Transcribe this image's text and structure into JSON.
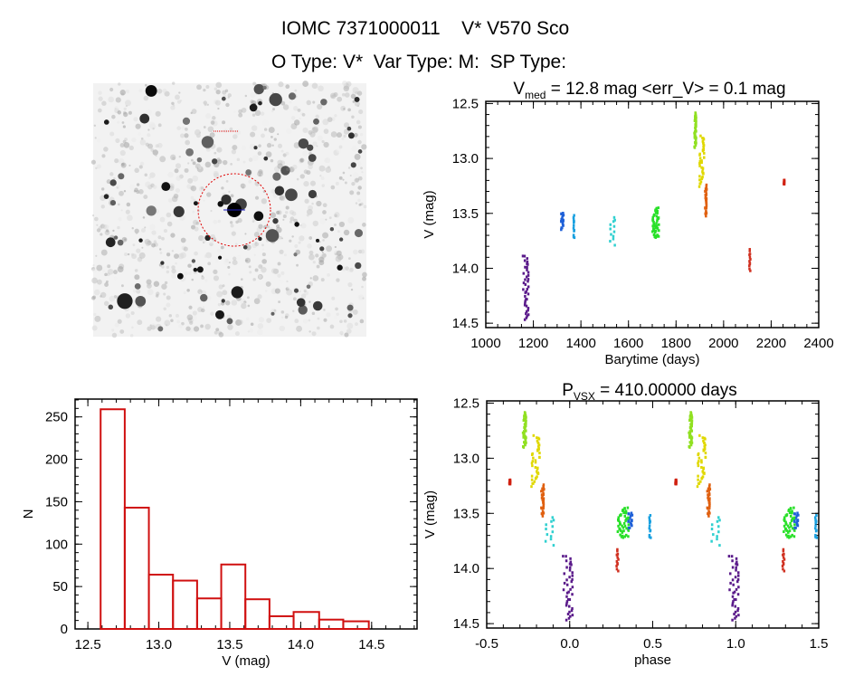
{
  "header": {
    "title": "IOMC 7371000011    V* V570 Sco",
    "subtitle": "O Type: V*  Var Type: M:  SP Type:"
  },
  "chart_data": [
    {
      "id": "histogram",
      "type": "bar",
      "title": "",
      "xlabel": "V (mag)",
      "ylabel": "N",
      "bin_edges": [
        12.59,
        12.76,
        12.93,
        13.1,
        13.27,
        13.44,
        13.61,
        13.78,
        13.95,
        14.13,
        14.3,
        14.48
      ],
      "values": [
        259,
        143,
        64,
        57,
        36,
        76,
        35,
        15,
        20,
        11,
        9
      ],
      "xlim": [
        12.41,
        14.82
      ],
      "ylim": [
        0,
        271
      ],
      "xticks": [
        "12.5",
        "13.0",
        "13.5",
        "14.0",
        "14.5"
      ],
      "yticks": [
        "0",
        "50",
        "100",
        "150",
        "200",
        "250"
      ],
      "color": "#d01010"
    },
    {
      "id": "lightcurve",
      "type": "scatter",
      "title_main": "V",
      "title_sub": "med",
      "title_rest": " = 12.8 mag <err_V> = 0.1 mag",
      "xlabel": "Barytime (days)",
      "ylabel": "V (mag)",
      "xlim": [
        1000,
        2400
      ],
      "ylim": [
        14.54,
        12.48
      ],
      "xticks": [
        "1000",
        "1200",
        "1400",
        "1600",
        "1800",
        "2000",
        "2200",
        "2400"
      ],
      "yticks": [
        "12.5",
        "13.0",
        "13.5",
        "14.0",
        "14.5"
      ],
      "clusters": [
        {
          "t": [
            1155,
            1180
          ],
          "v": [
            13.88,
            14.47
          ],
          "n": 40,
          "color": "#5a1a8a"
        },
        {
          "t": [
            1316,
            1326
          ],
          "v": [
            13.49,
            13.64
          ],
          "n": 20,
          "color": "#1e60d8"
        },
        {
          "t": [
            1368,
            1372
          ],
          "v": [
            13.51,
            13.73
          ],
          "n": 12,
          "color": "#18a0e0"
        },
        {
          "t": [
            1517,
            1542
          ],
          "v": [
            13.53,
            13.78
          ],
          "n": 12,
          "color": "#30d0d0"
        },
        {
          "t": [
            1700,
            1727
          ],
          "v": [
            13.45,
            13.72
          ],
          "n": 50,
          "color": "#28e028"
        },
        {
          "t": [
            1876,
            1884
          ],
          "v": [
            12.58,
            12.9
          ],
          "n": 40,
          "color": "#90e020"
        },
        {
          "t": [
            1897,
            1918
          ],
          "v": [
            12.8,
            13.25
          ],
          "n": 40,
          "color": "#e0d800"
        },
        {
          "t": [
            1921,
            1928
          ],
          "v": [
            13.25,
            13.52
          ],
          "n": 30,
          "color": "#e06010"
        },
        {
          "t": [
            2106,
            2112
          ],
          "v": [
            13.83,
            14.02
          ],
          "n": 12,
          "color": "#d03020"
        },
        {
          "t": [
            2252,
            2258
          ],
          "v": [
            13.2,
            13.24
          ],
          "n": 10,
          "color": "#d02010"
        }
      ]
    },
    {
      "id": "phased",
      "type": "scatter",
      "title_main": "P",
      "title_sub": "VSX",
      "title_rest": " = 410.00000 days",
      "period_days": 410.0,
      "xlabel": "phase",
      "ylabel": "V (mag)",
      "xlim": [
        -0.5,
        1.5
      ],
      "ylim": [
        14.54,
        12.48
      ],
      "xticks": [
        "-0.5",
        "0.0",
        "0.5",
        "1.0",
        "1.5"
      ],
      "yticks": [
        "12.5",
        "13.0",
        "13.5",
        "14.0",
        "14.5"
      ]
    }
  ],
  "thumbnail": {
    "marker_color": "#e00000"
  }
}
